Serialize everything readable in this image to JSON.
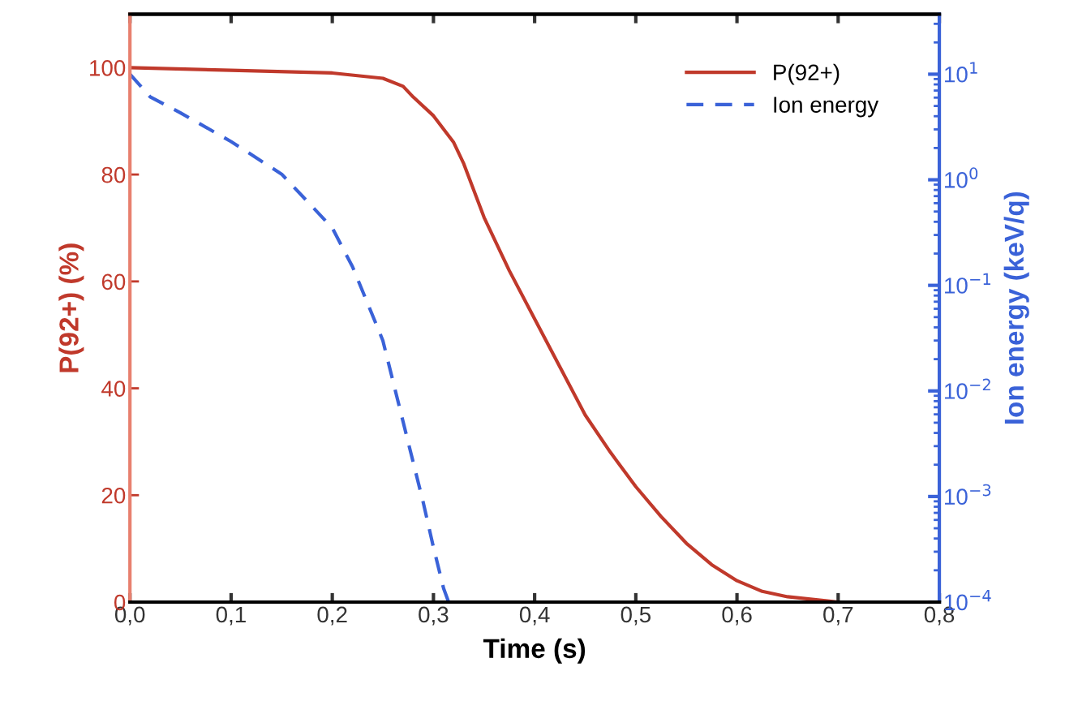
{
  "chart_data": {
    "type": "line",
    "xlabel": "Time (s)",
    "ylabel": "P(92+) (%)",
    "y2label": "Ion energy (keV/q)",
    "xlim": [
      0,
      0.8
    ],
    "xticks": [
      {
        "value": 0,
        "label": "0,0"
      },
      {
        "value": 0.1,
        "label": "0,1"
      },
      {
        "value": 0.2,
        "label": "0,2"
      },
      {
        "value": 0.3,
        "label": "0,3"
      },
      {
        "value": 0.4,
        "label": "0,4"
      },
      {
        "value": 0.5,
        "label": "0,5"
      },
      {
        "value": 0.6,
        "label": "0,6"
      },
      {
        "value": 0.7,
        "label": "0,7"
      },
      {
        "value": 0.8,
        "label": "0,8"
      }
    ],
    "ylim": [
      0,
      110
    ],
    "yticks": [
      0,
      20,
      40,
      60,
      80,
      100
    ],
    "y2lim": [
      0.0001,
      37
    ],
    "y2ticks": [
      {
        "value": 0.0001,
        "label": "10$^{−4}$"
      },
      {
        "value": 0.001,
        "label": "10$^{−3}$"
      },
      {
        "value": 0.01,
        "label": "10$^{−2}$"
      },
      {
        "value": 0.1,
        "label": "10$^{−1}$"
      },
      {
        "value": 1,
        "label": "10$^{0}$"
      },
      {
        "value": 10,
        "label": "10$^{1}$"
      }
    ],
    "log": "y2",
    "legend": "top right",
    "grid": false,
    "series": [
      {
        "name": "P(92+)",
        "color": "#c0392b",
        "line_style": "solid",
        "x": [
          0,
          0.1,
          0.2,
          0.25,
          0.27,
          0.28,
          0.3,
          0.32,
          0.33,
          0.35,
          0.375,
          0.4,
          0.425,
          0.45,
          0.475,
          0.5,
          0.525,
          0.55,
          0.575,
          0.6,
          0.625,
          0.65,
          0.7,
          0.8
        ],
        "values": [
          100,
          99.5,
          99,
          98,
          96.5,
          94.5,
          91,
          86,
          82,
          72,
          62,
          53,
          44,
          35,
          28,
          21.6,
          16,
          11,
          7,
          4,
          2,
          1,
          0,
          0
        ]
      },
      {
        "name": "Ion energy",
        "color": "#3a62d8",
        "line_style": "dashed",
        "axis": "y2",
        "x": [
          0,
          0.02,
          0.05,
          0.1,
          0.15,
          0.2,
          0.22,
          0.25,
          0.27,
          0.29,
          0.3,
          0.31,
          0.315
        ],
        "values": [
          10,
          6.1,
          4.3,
          2.3,
          1.13,
          0.35,
          0.15,
          0.03,
          0.0051,
          0.00087,
          0.00033,
          0.000135,
          0.0001
        ]
      }
    ]
  }
}
